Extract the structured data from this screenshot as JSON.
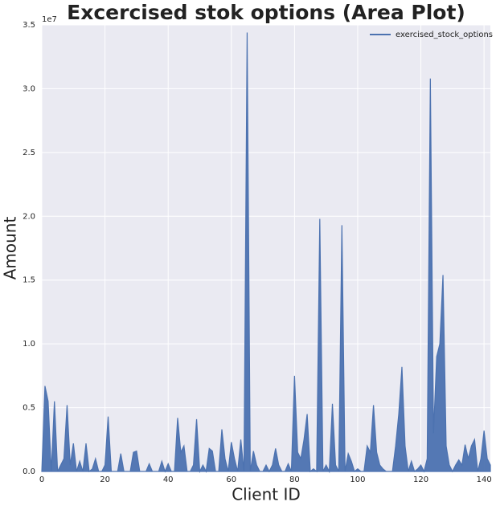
{
  "chart_data": {
    "type": "area",
    "title": "Excercised stok options (Area Plot)",
    "x_label": "Client ID",
    "y_label": "Amount",
    "y_offset_label": "1e7",
    "x": [
      0,
      1,
      2,
      3,
      4,
      5,
      6,
      7,
      8,
      9,
      10,
      11,
      12,
      13,
      14,
      15,
      16,
      17,
      18,
      19,
      20,
      21,
      22,
      23,
      24,
      25,
      26,
      27,
      28,
      29,
      30,
      31,
      32,
      33,
      34,
      35,
      36,
      37,
      38,
      39,
      40,
      41,
      42,
      43,
      44,
      45,
      46,
      47,
      48,
      49,
      50,
      51,
      52,
      53,
      54,
      55,
      56,
      57,
      58,
      59,
      60,
      61,
      62,
      63,
      64,
      65,
      66,
      67,
      68,
      69,
      70,
      71,
      72,
      73,
      74,
      75,
      76,
      77,
      78,
      79,
      80,
      81,
      82,
      83,
      84,
      85,
      86,
      87,
      88,
      89,
      90,
      91,
      92,
      93,
      94,
      95,
      96,
      97,
      98,
      99,
      100,
      101,
      102,
      103,
      104,
      105,
      106,
      107,
      108,
      109,
      110,
      111,
      112,
      113,
      114,
      115,
      116,
      117,
      118,
      119,
      120,
      121,
      122,
      123,
      124,
      125,
      126,
      127,
      128,
      129,
      130,
      131,
      132,
      133,
      134,
      135,
      136,
      137,
      138,
      139,
      140,
      141,
      142
    ],
    "series": [
      {
        "name": "exercised_stock_options",
        "color": "#4c72b0",
        "values": [
          0.0,
          0.67,
          0.55,
          0.0,
          0.55,
          0.0,
          0.05,
          0.1,
          0.52,
          0.05,
          0.22,
          0.0,
          0.08,
          0.0,
          0.22,
          0.0,
          0.02,
          0.1,
          0.0,
          0.0,
          0.05,
          0.43,
          0.0,
          0.0,
          0.0,
          0.14,
          0.0,
          0.0,
          0.0,
          0.15,
          0.16,
          0.0,
          0.0,
          0.0,
          0.06,
          0.0,
          0.0,
          0.0,
          0.08,
          0.0,
          0.06,
          0.0,
          0.0,
          0.42,
          0.15,
          0.2,
          0.0,
          0.0,
          0.05,
          0.41,
          0.0,
          0.05,
          0.0,
          0.18,
          0.16,
          0.0,
          0.0,
          0.33,
          0.1,
          0.0,
          0.23,
          0.1,
          0.0,
          0.25,
          0.0,
          3.44,
          0.0,
          0.16,
          0.05,
          0.0,
          0.0,
          0.05,
          0.0,
          0.05,
          0.18,
          0.05,
          0.0,
          0.0,
          0.06,
          0.0,
          0.75,
          0.15,
          0.1,
          0.25,
          0.45,
          0.0,
          0.02,
          0.0,
          1.98,
          0.0,
          0.05,
          0.0,
          0.53,
          0.05,
          0.0,
          1.93,
          0.0,
          0.14,
          0.08,
          0.0,
          0.02,
          0.0,
          0.0,
          0.2,
          0.15,
          0.52,
          0.15,
          0.05,
          0.02,
          0.0,
          0.0,
          0.0,
          0.2,
          0.45,
          0.82,
          0.2,
          0.0,
          0.08,
          0.0,
          0.02,
          0.05,
          0.0,
          0.1,
          3.08,
          0.3,
          0.9,
          1.0,
          1.54,
          0.2,
          0.05,
          0.0,
          0.05,
          0.09,
          0.05,
          0.21,
          0.1,
          0.2,
          0.25,
          0.0,
          0.1,
          0.32,
          0.1,
          0.05
        ]
      }
    ],
    "xlim": [
      0,
      142
    ],
    "ylim": [
      0,
      3.5
    ],
    "xticks": [
      0,
      20,
      40,
      60,
      80,
      100,
      120,
      140
    ],
    "yticks": [
      {
        "value": 0,
        "label": "0.0"
      },
      0.5,
      {
        "value": 1,
        "label": "1.0"
      },
      1.5,
      {
        "value": 2,
        "label": "2.0"
      },
      2.5,
      {
        "value": 3,
        "label": "3.0"
      },
      3.5
    ],
    "grid": true,
    "legend": "upper right"
  }
}
